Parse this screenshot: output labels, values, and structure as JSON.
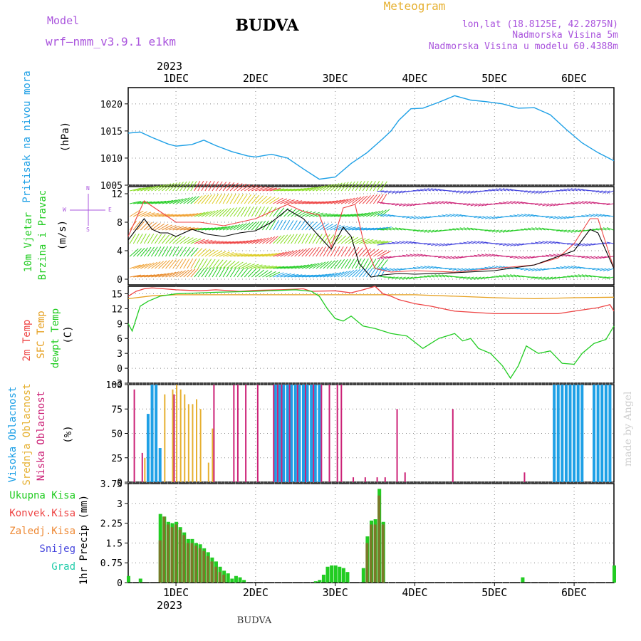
{
  "header": {
    "model_label": "Model",
    "model_name": "wrf—nmm_v3.9.1 e1km",
    "station": "BUDVA",
    "title": "Meteogram",
    "lonlat": "lon,lat (18.8125E, 42.2875N)",
    "elevation": "Nadmorska Visina 5m",
    "model_elevation": "Nadmorska Visina u modelu 60.4388m",
    "year": "2023",
    "footer_station": "BUDVA",
    "watermark": "made by Angel"
  },
  "colors": {
    "pressure": "#1ea0e6",
    "wind_label": "#22cc22",
    "temp2m": "#ee4444",
    "sfc": "#e6a020",
    "dew": "#22cc22",
    "high": "#1ea0e6",
    "mid": "#e6b030",
    "low": "#cc2277",
    "rain_total": "#22cc22",
    "rain_conv": "#ee4444",
    "rain_frz": "#ee8833",
    "snow": "#4444dd",
    "hail": "#22ccaa",
    "title": "#000000",
    "meta": "#aa55dd",
    "meteogram": "#e6b030"
  },
  "x_axis": {
    "day_labels": [
      "1DEC",
      "2DEC",
      "3DEC",
      "4DEC",
      "5DEC",
      "6DEC"
    ],
    "day_start": "2023-12-01",
    "range_days": [
      -0.6,
      5.5
    ]
  },
  "chart_data": [
    {
      "type": "line",
      "panel": "pressure",
      "ylabel_side": "Pritisak na nivou mora",
      "unit": "(hPa)",
      "ylim": [
        1005,
        1023
      ],
      "yticks": [
        1005,
        1010,
        1015,
        1020
      ],
      "series": [
        {
          "x": [
            -0.6,
            -0.45,
            -0.3,
            -0.1,
            0.0,
            0.2,
            0.35,
            0.5,
            0.7,
            0.9,
            1.0,
            1.2,
            1.4,
            1.6,
            1.8,
            2.0,
            2.2,
            2.4,
            2.6,
            2.7,
            2.8,
            2.95,
            3.1,
            3.3,
            3.5,
            3.7,
            3.9,
            4.1,
            4.3,
            4.5,
            4.7,
            4.9,
            5.1,
            5.3,
            5.5
          ],
          "y": [
            1014.6,
            1014.8,
            1013.8,
            1012.6,
            1012.2,
            1012.5,
            1013.3,
            1012.3,
            1011.2,
            1010.4,
            1010.2,
            1010.7,
            1010.0,
            1008.0,
            1006.1,
            1006.5,
            1009.0,
            1011.0,
            1013.6,
            1015.0,
            1017.0,
            1019.1,
            1019.2,
            1020.3,
            1021.5,
            1020.7,
            1020.4,
            1020.0,
            1019.2,
            1019.3,
            1018.0,
            1015.3,
            1012.8,
            1011.0,
            1009.5
          ]
        }
      ]
    },
    {
      "type": "line",
      "panel": "wind",
      "ylabel_side": [
        "10m Vjetar",
        "Brzina i Pravac"
      ],
      "unit": "(m/s)",
      "ylim": [
        -0.8,
        13
      ],
      "yticks": [
        0,
        4,
        8,
        12
      ],
      "series": [
        {
          "name": "speed",
          "x": [
            -0.6,
            -0.5,
            -0.4,
            -0.3,
            -0.2,
            -0.1,
            0.0,
            0.2,
            0.4,
            0.6,
            0.8,
            1.0,
            1.2,
            1.4,
            1.6,
            1.8,
            1.95,
            2.1,
            2.2,
            2.3,
            2.45,
            2.6,
            2.8,
            3.0,
            3.5,
            4.0,
            4.5,
            5.0,
            5.2,
            5.3,
            5.4,
            5.5
          ],
          "y": [
            5.5,
            7.0,
            8.5,
            7.0,
            6.5,
            6.5,
            6.0,
            7.0,
            6.3,
            6.0,
            6.5,
            6.8,
            8.0,
            9.8,
            8.5,
            6.0,
            4.2,
            7.3,
            6.0,
            2.2,
            0.3,
            0.6,
            0.8,
            0.7,
            0.9,
            1.2,
            2.0,
            4.0,
            7.0,
            6.5,
            4.0,
            1.5
          ]
        },
        {
          "name": "gust",
          "x": [
            -0.6,
            -0.4,
            -0.2,
            0.0,
            0.3,
            0.6,
            1.0,
            1.4,
            1.6,
            1.8,
            1.95,
            2.1,
            2.25,
            2.35,
            2.5,
            2.7,
            3.0,
            3.5,
            4.0,
            4.5,
            4.8,
            5.0,
            5.2,
            5.3,
            5.4,
            5.5
          ],
          "y": [
            6.0,
            11.0,
            9.5,
            8.0,
            8.0,
            7.5,
            8.5,
            10.5,
            9.5,
            9.0,
            4.5,
            10.0,
            10.5,
            5.5,
            1.5,
            1.0,
            1.2,
            1.0,
            1.5,
            2.0,
            3.0,
            5.0,
            8.5,
            8.5,
            5.0,
            1.5
          ]
        }
      ],
      "direction_legend": [
        "W",
        "E",
        "N",
        "S"
      ]
    },
    {
      "type": "line",
      "panel": "temperature",
      "ylabel_side": [
        "2m Temp",
        "SFC Temp",
        "dewpt Temp"
      ],
      "unit": "(C)",
      "ylim": [
        -3,
        16.5
      ],
      "yticks": [
        -3,
        0,
        3,
        6,
        9,
        12,
        15
      ],
      "series": [
        {
          "name": "2m Temp",
          "x": [
            -0.6,
            -0.5,
            -0.4,
            -0.3,
            0.0,
            0.3,
            0.5,
            0.8,
            1.0,
            1.3,
            1.6,
            1.7,
            2.0,
            2.2,
            2.35,
            2.5,
            2.6,
            2.7,
            2.8,
            3.0,
            3.2,
            3.5,
            4.0,
            4.5,
            4.8,
            5.0,
            5.3,
            5.45,
            5.5
          ],
          "y": [
            14.5,
            15.5,
            16.0,
            16.2,
            15.8,
            15.6,
            15.8,
            15.5,
            15.7,
            15.8,
            16.0,
            15.5,
            15.6,
            15.2,
            15.8,
            16.5,
            15.0,
            14.5,
            13.8,
            13.0,
            12.5,
            11.5,
            11.0,
            11.0,
            11.0,
            11.5,
            12.2,
            12.8,
            11.5
          ]
        },
        {
          "name": "SFC Temp",
          "x": [
            -0.6,
            -0.3,
            0.0,
            0.5,
            1.0,
            1.5,
            2.0,
            2.5,
            3.0,
            3.5,
            4.0,
            4.5,
            5.0,
            5.5
          ],
          "y": [
            14.0,
            14.6,
            14.8,
            14.8,
            14.8,
            14.8,
            14.8,
            14.8,
            14.8,
            14.5,
            14.2,
            14.0,
            14.2,
            14.3
          ]
        },
        {
          "name": "dewpt Temp",
          "x": [
            -0.6,
            -0.55,
            -0.45,
            -0.35,
            -0.2,
            0.0,
            0.5,
            1.0,
            1.5,
            1.7,
            1.8,
            1.9,
            2.0,
            2.1,
            2.2,
            2.35,
            2.5,
            2.7,
            2.9,
            3.1,
            3.3,
            3.5,
            3.6,
            3.7,
            3.8,
            3.95,
            4.1,
            4.2,
            4.3,
            4.4,
            4.55,
            4.7,
            4.85,
            5.0,
            5.1,
            5.25,
            5.4,
            5.5
          ],
          "y": [
            9.0,
            7.5,
            12.5,
            13.5,
            14.5,
            15.0,
            15.3,
            15.5,
            15.8,
            15.5,
            14.5,
            12.0,
            10.0,
            9.5,
            10.5,
            8.5,
            8.0,
            7.0,
            6.5,
            4.0,
            6.0,
            7.0,
            5.5,
            6.0,
            4.0,
            3.0,
            0.5,
            -2.0,
            0.5,
            4.5,
            3.0,
            3.5,
            1.0,
            0.8,
            3.0,
            5.0,
            5.8,
            8.5
          ]
        }
      ]
    },
    {
      "type": "bar",
      "panel": "cloud",
      "ylabel_side": [
        "Visoka Oblacnost",
        "Srednja Oblacnost",
        "Niska Oblacnost"
      ],
      "unit": "(%)",
      "ylim": [
        0,
        100
      ],
      "yticks": [
        0,
        25,
        50,
        75,
        100
      ],
      "series": [
        {
          "name": "Visoka Oblacnost",
          "x": [
            -0.35,
            -0.3,
            -0.25,
            -0.2,
            1.25,
            1.3,
            1.35,
            1.4,
            1.45,
            1.5,
            1.55,
            1.6,
            1.65,
            1.7,
            1.75,
            1.8,
            4.75,
            4.8,
            4.85,
            4.9,
            4.95,
            5.0,
            5.05,
            5.1,
            5.25,
            5.3,
            5.35,
            5.4,
            5.45
          ],
          "values": [
            70,
            100,
            100,
            35,
            100,
            100,
            100,
            100,
            100,
            100,
            100,
            100,
            100,
            100,
            100,
            100,
            100,
            100,
            100,
            100,
            100,
            100,
            100,
            100,
            100,
            100,
            100,
            100,
            100
          ]
        },
        {
          "name": "Srednja Oblacnost",
          "x": [
            -0.4,
            -0.15,
            -0.05,
            0.0,
            0.05,
            0.1,
            0.15,
            0.2,
            0.25,
            0.3,
            0.4,
            0.45
          ],
          "values": [
            25,
            90,
            95,
            100,
            95,
            90,
            80,
            80,
            85,
            75,
            20,
            55
          ]
        },
        {
          "name": "Niska Oblacnost",
          "x": [
            -0.55,
            -0.45,
            -0.05,
            0.45,
            0.7,
            0.75,
            0.85,
            1.0,
            1.2,
            1.25,
            1.3,
            1.4,
            1.5,
            1.6,
            1.7,
            1.8,
            1.9,
            2.0,
            2.05,
            2.2,
            2.35,
            2.5,
            2.6,
            2.75,
            2.85,
            3.45,
            4.35
          ],
          "values": [
            95,
            30,
            90,
            100,
            100,
            100,
            100,
            100,
            100,
            100,
            100,
            100,
            100,
            100,
            100,
            100,
            100,
            100,
            100,
            5,
            5,
            5,
            5,
            75,
            10,
            75,
            10
          ]
        }
      ]
    },
    {
      "type": "bar",
      "panel": "precip",
      "ylabel_side": "1hr Precip (mm)",
      "legend": [
        "Ukupna Kisa",
        "Konvek.Kisa",
        "Zaledj.Kisa",
        "Snijeg",
        "Grad"
      ],
      "ylim": [
        0,
        3.75
      ],
      "yticks": [
        0,
        0.75,
        1.5,
        2.25,
        3,
        3.75
      ],
      "series": [
        {
          "name": "Ukupna Kisa",
          "x": [
            -0.6,
            -0.45,
            -0.2,
            -0.15,
            -0.1,
            -0.05,
            0.0,
            0.05,
            0.1,
            0.15,
            0.2,
            0.25,
            0.3,
            0.35,
            0.4,
            0.45,
            0.5,
            0.55,
            0.6,
            0.65,
            0.7,
            0.75,
            0.8,
            0.85,
            1.75,
            1.8,
            1.85,
            1.9,
            1.95,
            2.0,
            2.05,
            2.1,
            2.15,
            2.35,
            2.4,
            2.45,
            2.5,
            2.55,
            2.6,
            4.35,
            5.5
          ],
          "values": [
            0.25,
            0.15,
            2.6,
            2.5,
            2.3,
            2.25,
            2.3,
            2.1,
            1.9,
            1.65,
            1.65,
            1.5,
            1.45,
            1.3,
            1.15,
            0.95,
            0.8,
            0.6,
            0.45,
            0.35,
            0.15,
            0.25,
            0.2,
            0.1,
            0.05,
            0.1,
            0.3,
            0.6,
            0.65,
            0.65,
            0.6,
            0.55,
            0.4,
            0.55,
            1.75,
            2.35,
            2.4,
            3.55,
            2.3,
            0.2,
            0.65
          ]
        },
        {
          "name": "Konvek.Kisa",
          "x": [
            -0.2,
            -0.15,
            -0.1,
            -0.05,
            0.0,
            0.05,
            0.1,
            0.15,
            0.2,
            0.25,
            0.3,
            0.35,
            0.4,
            0.45,
            0.5,
            0.55,
            0.6,
            2.4,
            2.45,
            2.5,
            2.55,
            2.6
          ],
          "values": [
            1.6,
            2.5,
            2.2,
            2.1,
            2.2,
            2.0,
            1.8,
            1.5,
            1.5,
            1.4,
            1.3,
            1.2,
            1.0,
            0.8,
            0.6,
            0.4,
            0.3,
            1.5,
            2.2,
            2.2,
            3.3,
            2.2
          ]
        }
      ]
    }
  ]
}
